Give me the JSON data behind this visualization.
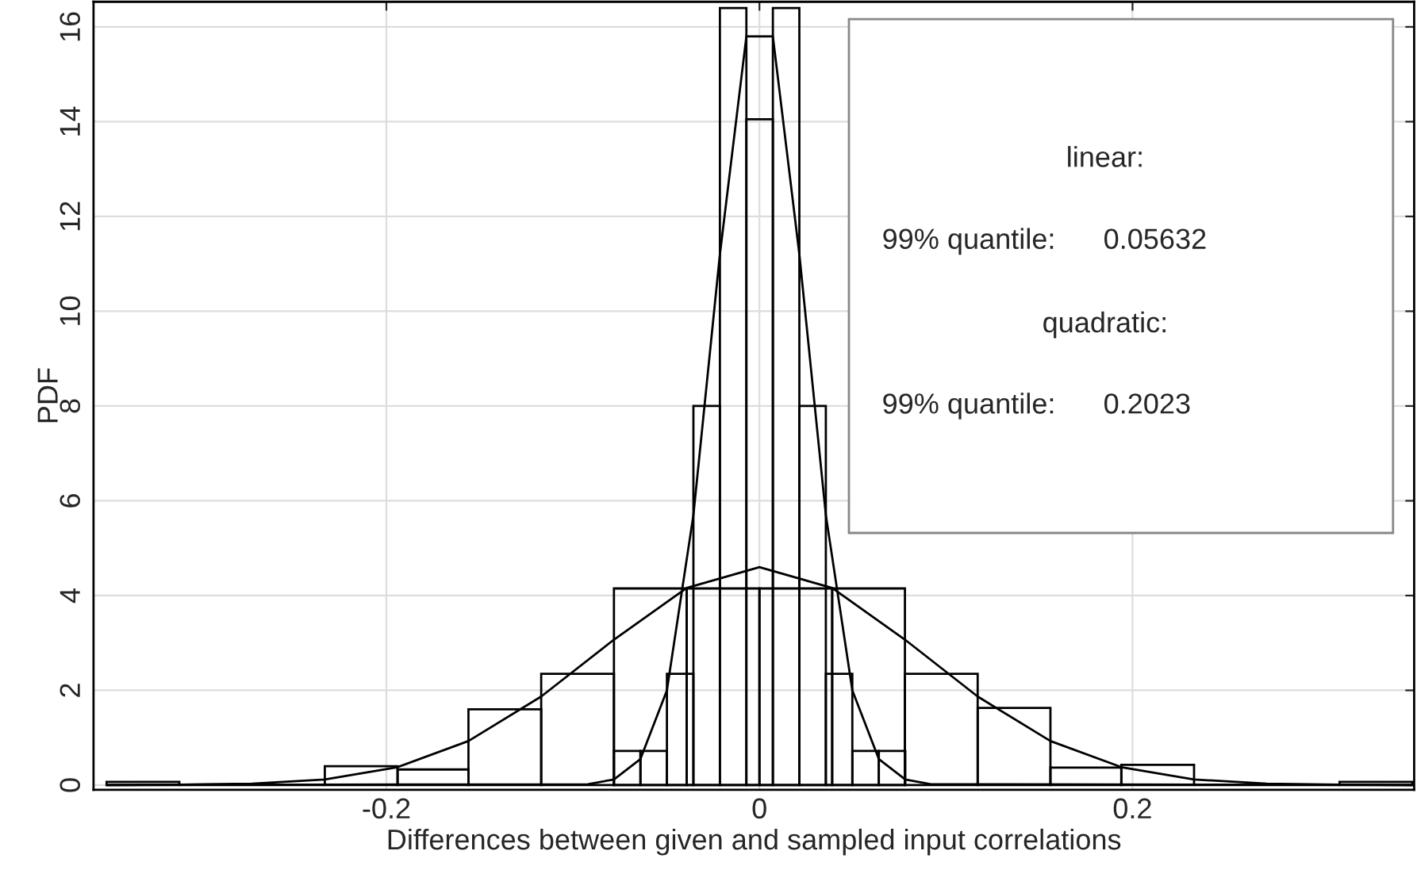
{
  "chart_data": {
    "type": "histogram",
    "xlabel": "Differences between given and sampled input correlations",
    "ylabel": "PDF",
    "xlim": [
      -0.357,
      0.351
    ],
    "ylim": [
      -0.1,
      16.53
    ],
    "xticks": [
      -0.2,
      0,
      0.2
    ],
    "yticks": [
      0,
      2,
      4,
      6,
      8,
      10,
      12,
      14,
      16
    ],
    "grid": true,
    "series": [
      {
        "color": "#000000",
        "bins": [
          -0.35,
          -0.311,
          -0.272,
          -0.233,
          -0.194,
          -0.156,
          -0.117,
          -0.078,
          -0.039,
          0,
          0.039,
          0.078,
          0.117,
          0.156,
          0.194,
          0.233,
          0.272,
          0.311,
          0.35
        ],
        "values": [
          0.07,
          0,
          0,
          0.4,
          0.33,
          1.6,
          2.35,
          4.15,
          4.15,
          4.15,
          4.15,
          2.35,
          1.63,
          0.37,
          0.43,
          0,
          0,
          0.07
        ]
      },
      {
        "color": "#000000",
        "bins": [
          -0.078,
          -0.0638,
          -0.0496,
          -0.0354,
          -0.0212,
          -0.007,
          0.0072,
          0.0214,
          0.0356,
          0.0498,
          0.064,
          0.0782
        ],
        "values": [
          0.72,
          0.72,
          2.35,
          8.0,
          16.4,
          14.05,
          16.4,
          8.0,
          2.35,
          0.72,
          0.72
        ]
      },
      {
        "type": "line",
        "color": "#000000",
        "x": [
          -0.35,
          -0.311,
          -0.272,
          -0.233,
          -0.194,
          -0.156,
          -0.117,
          -0.078,
          -0.039,
          0,
          0.039,
          0.078,
          0.117,
          0.156,
          0.194,
          0.233,
          0.272,
          0.311,
          0.35
        ],
        "values": [
          0,
          0.01,
          0.03,
          0.12,
          0.38,
          0.93,
          1.87,
          3.07,
          4.16,
          4.6,
          4.16,
          3.07,
          1.87,
          0.93,
          0.38,
          0.12,
          0.03,
          0.01,
          0
        ]
      },
      {
        "type": "line",
        "color": "#000000",
        "x": [
          -0.35,
          -0.092,
          -0.078,
          -0.0638,
          -0.0496,
          -0.0354,
          -0.0212,
          -0.007,
          0.0072,
          0.0214,
          0.0356,
          0.0498,
          0.064,
          0.0782,
          0.092,
          0.35
        ],
        "values": [
          0,
          0.02,
          0.12,
          0.55,
          2.0,
          5.7,
          11.2,
          15.8,
          15.8,
          11.2,
          5.7,
          2.0,
          0.55,
          0.12,
          0.02,
          0
        ]
      }
    ],
    "annotations": [
      "linear:",
      "99% quantile:      0.05632",
      "quadratic:",
      "99% quantile:      0.2023"
    ]
  }
}
